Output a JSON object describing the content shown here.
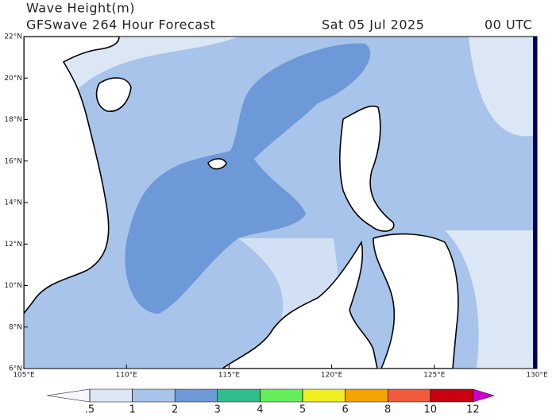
{
  "header": {
    "title": "Wave Height(m)",
    "subtitle": "GFSwave 264 Hour Forecast",
    "date": "Sat 05 Jul 2025",
    "time": "00 UTC"
  },
  "map": {
    "xlim": [
      105,
      130
    ],
    "ylim": [
      6,
      22
    ],
    "xticks": [
      {
        "value": 105,
        "label": "105°E"
      },
      {
        "value": 110,
        "label": "110°E"
      },
      {
        "value": 115,
        "label": "115°E"
      },
      {
        "value": 120,
        "label": "120°E"
      },
      {
        "value": 125,
        "label": "125°E"
      },
      {
        "value": 130,
        "label": "130°E"
      }
    ],
    "yticks": [
      {
        "value": 6,
        "label": "6°N"
      },
      {
        "value": 8,
        "label": "8°N"
      },
      {
        "value": 10,
        "label": "10°N"
      },
      {
        "value": 12,
        "label": "12°N"
      },
      {
        "value": 14,
        "label": "14°N"
      },
      {
        "value": 16,
        "label": "16°N"
      },
      {
        "value": 18,
        "label": "18°N"
      },
      {
        "value": 20,
        "label": "20°N"
      },
      {
        "value": 22,
        "label": "22°N"
      }
    ]
  },
  "colorbar": {
    "ticks": [
      {
        "value": 0.5,
        "label": ".5"
      },
      1,
      2,
      3,
      4,
      5,
      6,
      8,
      10,
      12
    ],
    "colors": [
      "#f4f7fc",
      "#dce7f5",
      "#a8c4ea",
      "#6e99d9",
      "#2fbf8c",
      "#66ee5a",
      "#eeee22",
      "#f4a400",
      "#f25a3c",
      "#c80010",
      "#cc00cc"
    ]
  }
}
